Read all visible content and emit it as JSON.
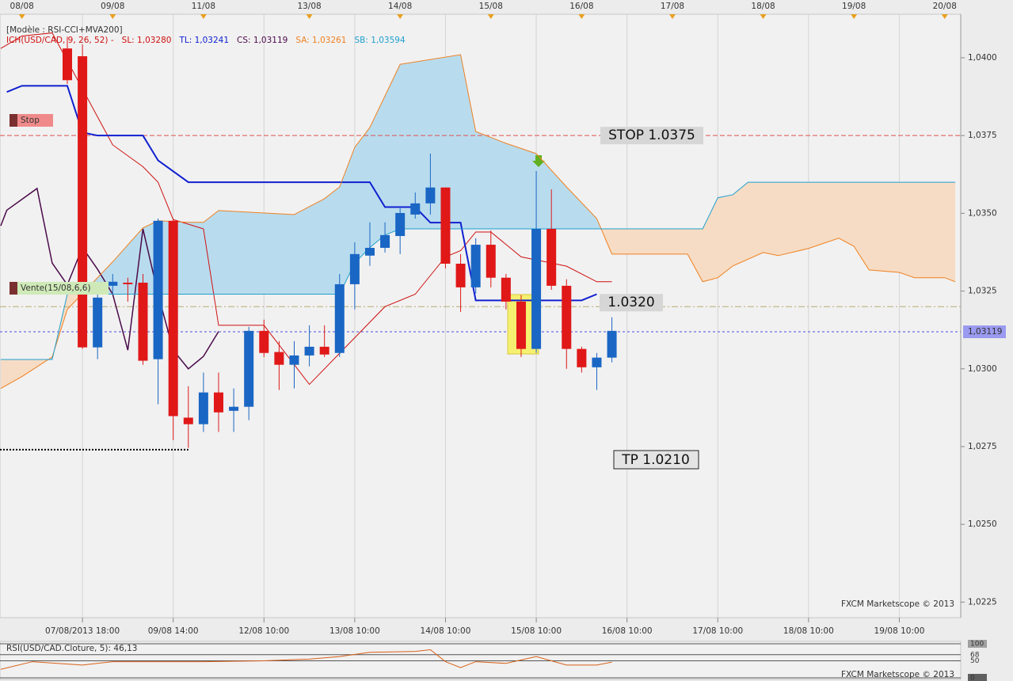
{
  "chart_data": [
    {
      "type": "candlestick",
      "template": "[Modèle : RSI-CCI+MVA200]",
      "indicator": "ICH(USD/CAD, 9, 26, 52) -",
      "xlim": [
        -5.45,
        58.06
      ],
      "ylim": [
        1.022,
        1.0414
      ],
      "grid": true,
      "xticks": [
        {
          "value": 0,
          "label": "07/08/2013 18:00"
        },
        {
          "value": 6,
          "label": "09/08 14:00"
        },
        {
          "value": 12,
          "label": "12/08 10:00"
        },
        {
          "value": 18,
          "label": "13/08 10:00"
        },
        {
          "value": 24,
          "label": "14/08 10:00"
        },
        {
          "value": 30,
          "label": "15/08 10:00"
        },
        {
          "value": 36,
          "label": "16/08 10:00"
        },
        {
          "value": 42,
          "label": "17/08 10:00"
        },
        {
          "value": 48,
          "label": "18/08 10:00"
        },
        {
          "value": 54,
          "label": "19/08 10:00"
        }
      ],
      "date_ticks": [
        {
          "value": -4,
          "label": "08/08"
        },
        {
          "value": 2,
          "label": "09/08"
        },
        {
          "value": 8,
          "label": "11/08"
        },
        {
          "value": 15,
          "label": "13/08"
        },
        {
          "value": 21,
          "label": "14/08"
        },
        {
          "value": 27,
          "label": "15/08"
        },
        {
          "value": 33,
          "label": "16/08"
        },
        {
          "value": 39,
          "label": "17/08"
        },
        {
          "value": 45,
          "label": "18/08"
        },
        {
          "value": 51,
          "label": "19/08"
        },
        {
          "value": 57,
          "label": "20/08"
        }
      ],
      "date_tick_color": "#e8a020",
      "yticks": [
        {
          "value": 1.0225,
          "label": "1,0225"
        },
        {
          "value": 1.025,
          "label": "1,0250"
        },
        {
          "value": 1.0275,
          "label": "1,0275"
        },
        {
          "value": 1.03,
          "label": "1,0300"
        },
        {
          "value": 1.0325,
          "label": "1,0325"
        },
        {
          "value": 1.035,
          "label": "1,0350"
        },
        {
          "value": 1.0375,
          "label": "1,0375"
        },
        {
          "value": 1.04,
          "label": "1,0400"
        }
      ],
      "candles": {
        "up_color": "#1a66c4",
        "down_color": "#e01818",
        "x": [
          -1,
          0,
          1,
          2,
          3,
          4,
          5,
          6,
          7,
          8,
          9,
          10,
          11,
          12,
          13,
          14,
          15,
          16,
          17,
          18,
          19,
          20,
          21,
          22,
          23,
          24,
          25,
          26,
          27,
          28,
          29,
          30,
          31,
          32,
          33,
          34,
          35
        ],
        "open": [
          1.0403,
          1.04005,
          1.03069,
          1.03267,
          1.03277,
          1.03277,
          1.03031,
          1.03476,
          1.02843,
          1.02822,
          1.02924,
          1.02865,
          1.02878,
          1.03122,
          1.03054,
          1.03013,
          1.03043,
          1.03071,
          1.03051,
          1.03272,
          1.03364,
          1.03389,
          1.03427,
          1.03496,
          1.03532,
          1.03583,
          1.03338,
          1.03262,
          1.03399,
          1.03293,
          1.03216,
          1.03064,
          1.0345,
          1.03267,
          1.03064,
          1.03005,
          1.03036
        ],
        "high": [
          1.04068,
          1.04043,
          1.03267,
          1.03305,
          1.03293,
          1.03305,
          1.03483,
          1.03483,
          1.02944,
          1.02988,
          1.02988,
          1.02937,
          1.03135,
          1.03158,
          1.03089,
          1.03089,
          1.0314,
          1.0314,
          1.03305,
          1.03407,
          1.03471,
          1.03471,
          1.03516,
          1.03567,
          1.03692,
          1.03583,
          1.03369,
          1.0342,
          1.03445,
          1.03305,
          1.03237,
          1.03636,
          1.03577,
          1.03288,
          1.03071,
          1.03051,
          1.03166
        ],
        "low": [
          1.03916,
          1.03064,
          1.03031,
          1.03242,
          1.03216,
          1.03013,
          1.02886,
          1.02771,
          1.02746,
          1.02797,
          1.02797,
          1.02797,
          1.02835,
          1.03038,
          1.02932,
          1.02937,
          1.03008,
          1.03038,
          1.03038,
          1.03191,
          1.03331,
          1.03374,
          1.03369,
          1.03483,
          1.03496,
          1.03323,
          1.03183,
          1.03242,
          1.03262,
          1.03191,
          1.03038,
          1.03051,
          1.03254,
          1.03,
          1.02988,
          1.02932,
          1.03021
        ],
        "close": [
          1.03928,
          1.03069,
          1.03229,
          1.0328,
          1.03272,
          1.03026,
          1.03476,
          1.02848,
          1.02822,
          1.02924,
          1.0286,
          1.02878,
          1.03122,
          1.03051,
          1.03013,
          1.03043,
          1.03071,
          1.03046,
          1.03272,
          1.03369,
          1.03389,
          1.0343,
          1.03501,
          1.03532,
          1.03583,
          1.03338,
          1.03262,
          1.03399,
          1.03293,
          1.03216,
          1.03064,
          1.0345,
          1.03267,
          1.03064,
          1.03005,
          1.03036,
          1.03122
        ]
      },
      "series": [
        {
          "name": "SL: 1,03280",
          "color": "#d01010",
          "width": 1,
          "x": [
            -5.4,
            -4,
            -2,
            -1,
            0,
            2,
            4,
            5,
            6,
            8,
            9,
            12,
            15,
            17,
            18,
            20,
            22,
            24,
            25,
            26,
            27,
            29,
            30,
            32,
            34,
            35
          ],
          "values": [
            1.0403,
            1.0407,
            1.0408,
            1.0399,
            1.039,
            1.0372,
            1.0365,
            1.036,
            1.0348,
            1.0345,
            1.0314,
            1.0314,
            1.0295,
            1.0305,
            1.031,
            1.032,
            1.0324,
            1.0336,
            1.0338,
            1.0344,
            1.0344,
            1.0336,
            1.0335,
            1.0333,
            1.0328,
            1.0328
          ]
        },
        {
          "name": "TL: 1,03241",
          "color": "#1020d0",
          "width": 2,
          "x": [
            -5,
            -4,
            -1,
            0,
            1,
            4,
            5,
            7,
            19,
            20,
            22,
            23,
            25,
            26,
            33,
            34
          ],
          "values": [
            1.0389,
            1.0391,
            1.0391,
            1.0376,
            1.0375,
            1.0375,
            1.0367,
            1.036,
            1.036,
            1.0352,
            1.0352,
            1.0347,
            1.0347,
            1.0322,
            1.0322,
            1.0324
          ]
        },
        {
          "name": "CS: 1,03119",
          "color": "#4a0a4a",
          "width": 1.5,
          "x": [
            -5.4,
            -5,
            -3,
            -2,
            -1,
            0,
            1,
            2,
            3,
            4,
            5,
            6,
            7,
            8,
            9
          ],
          "values": [
            1.0346,
            1.0351,
            1.0358,
            1.0334,
            1.0327,
            1.0339,
            1.0332,
            1.0324,
            1.0306,
            1.0345,
            1.0324,
            1.0306,
            1.03,
            1.0304,
            1.0312
          ]
        },
        {
          "name": "SA: 1,03261",
          "color": "#f08020",
          "width": 1,
          "cloud": "upper",
          "x": [
            -5.4,
            -4,
            -2,
            -1,
            0,
            2,
            4,
            5,
            7,
            8,
            9,
            14,
            16,
            17,
            18,
            19,
            21,
            25,
            26,
            28,
            30,
            32,
            34,
            35,
            40,
            41,
            42,
            43,
            45,
            46,
            48,
            50,
            51,
            52,
            54,
            55,
            57,
            57.7
          ],
          "values": [
            1.02937,
            1.02975,
            1.03038,
            1.03191,
            1.03242,
            1.03344,
            1.03453,
            1.03476,
            1.03471,
            1.03471,
            1.03509,
            1.03496,
            1.03547,
            1.03585,
            1.03712,
            1.03776,
            1.03979,
            1.0401,
            1.03763,
            1.03725,
            1.03692,
            1.03585,
            1.03483,
            1.03369,
            1.03369,
            1.0328,
            1.03293,
            1.03331,
            1.03374,
            1.03364,
            1.03387,
            1.0342,
            1.03394,
            1.03318,
            1.0331,
            1.03293,
            1.03293,
            1.0328
          ]
        },
        {
          "name": "SB: 1,03594",
          "color": "#20a0d0",
          "width": 1,
          "cloud": "lower",
          "x": [
            -5.4,
            -2,
            -1,
            17,
            18,
            19,
            20,
            21,
            41,
            42,
            43,
            44,
            57.7
          ],
          "values": [
            1.0303,
            1.0303,
            1.0324,
            1.0324,
            1.0334,
            1.0339,
            1.0343,
            1.0345,
            1.0345,
            1.0355,
            1.0356,
            1.036,
            1.036
          ]
        }
      ],
      "cloud_colors": {
        "up": "#b8dcee",
        "down": "#f6dcc4"
      },
      "levels": [
        {
          "label": "STOP 1.0375",
          "value": 1.0375,
          "color": "#e05050"
        },
        {
          "label": "1.0320",
          "value": 1.032,
          "color": "#b8ae70"
        }
      ],
      "tp_line": {
        "value": 1.0274,
        "x": [
          -5.45,
          7
        ],
        "color": "#000000"
      },
      "tp_label": "TP 1.0210",
      "last_price": {
        "value": 1.03119,
        "label": "1,03119",
        "color": "#5050e0"
      },
      "markers": [
        "Stop",
        "Vente(15/08,6,6)"
      ]
    },
    {
      "type": "line",
      "xlim": [
        -5.45,
        58.06
      ],
      "ylim": [
        0,
        100
      ],
      "yticks": [
        100,
        68,
        50,
        0
      ],
      "series": [
        {
          "name": "RSI(USD/CAD.Cloture, 5): 46,13",
          "color": "#d86018",
          "width": 1,
          "x": [
            -5.4,
            -3.3,
            0,
            2,
            5,
            8,
            12,
            15,
            17,
            19,
            22,
            23,
            24,
            25,
            26,
            28,
            30,
            32,
            34,
            35
          ],
          "values": [
            25,
            47.5,
            37.5,
            47.5,
            47.5,
            47.5,
            50,
            55,
            62.5,
            75,
            77.5,
            82.5,
            47.5,
            30,
            47.5,
            42.5,
            62.5,
            37.5,
            37.5,
            46.13
          ]
        }
      ]
    }
  ],
  "watermark": "FXCM Marketscope © 2013"
}
